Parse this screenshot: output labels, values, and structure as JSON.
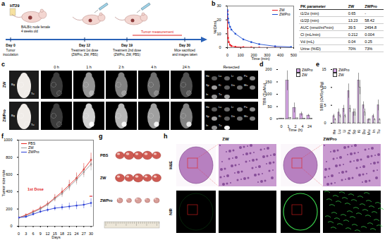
{
  "panel_labels": [
    "a",
    "b",
    "c",
    "d",
    "e",
    "f",
    "g",
    "h"
  ],
  "schematic": {
    "cell_line": "HT29",
    "mouse": "BALB/c nude female",
    "age": "4 weeks old",
    "measurement": "Tumor measurement",
    "timeline": [
      {
        "day": "Day 0",
        "event": "Tumor\ninoculation"
      },
      {
        "day": "Day 12",
        "event": "Treatment 1st dose\n(ZWPro, ZW, PBS)"
      },
      {
        "day": "Day 19",
        "event": "Treatment 2nd dose\n(ZWPro, ZW, PBS)"
      },
      {
        "day": "Day 30",
        "event": "Mice sacrificed\nand images taken"
      }
    ]
  },
  "pk_table": {
    "header": [
      "PK parameter",
      "ZW",
      "ZWPro"
    ],
    "rows": [
      [
        "t1/2α (min)",
        "0.65",
        "-"
      ],
      [
        "t1/2β (min)",
        "13.23",
        "58.42"
      ],
      [
        "AUC (nmol/ml*min)",
        "39.5",
        "2494.8"
      ],
      [
        "Cl (mL/min)",
        "0.212",
        "0.004"
      ],
      [
        "Vd (mL)",
        "0.04",
        "0.25"
      ],
      [
        "Urine (%ID)",
        "70%",
        "73%"
      ]
    ]
  },
  "imaging": {
    "rows": [
      "ZW",
      "ZWPro"
    ],
    "timepoints": [
      "0 h",
      "1 h",
      "2 h",
      "4 h",
      "24 h"
    ],
    "resected": "Resected",
    "marks": [
      "Bg",
      "Tu"
    ],
    "organ_labels": [
      "He",
      "Lu",
      "Li",
      "Pa",
      "Sp",
      "Ki",
      "Du",
      "Mu",
      "In",
      "Tu"
    ]
  },
  "tumor_photos": {
    "groups": [
      "PBS",
      "ZW",
      "ZWPro"
    ]
  },
  "histology": {
    "columns": [
      "ZW",
      "ZWPro"
    ],
    "rows": [
      "H&E",
      "NIR"
    ]
  },
  "chart_data": [
    {
      "panel": "b",
      "type": "line",
      "x_label": "Time (min)",
      "y_label": "%ID/mL",
      "xlim": [
        0,
        500
      ],
      "xticks": [
        0,
        100,
        200,
        300,
        400,
        500
      ],
      "ylim": [
        0,
        30
      ],
      "yticks": [
        0,
        10,
        20,
        30
      ],
      "marker": "circle",
      "legend": "top-right",
      "x": [
        0,
        2,
        5,
        10,
        20,
        30,
        60,
        120,
        180,
        240,
        360,
        480
      ],
      "series": [
        {
          "name": "ZW",
          "color": "#e8141c",
          "values": [
            26,
            14,
            7,
            4,
            2,
            1.2,
            0.6,
            0.3,
            0.2,
            0.1,
            0.1,
            0.1
          ]
        },
        {
          "name": "ZWPro",
          "color": "#1f4fd1",
          "values": [
            27,
            24,
            21,
            18,
            15,
            13,
            10,
            6,
            4,
            2.5,
            1,
            0.5
          ]
        }
      ]
    },
    {
      "panel": "d",
      "type": "bar",
      "x_label": "Time (h)",
      "y_label": "TBR (Tu/Mu)",
      "categories": [
        "0",
        "1",
        "2",
        "4",
        "24"
      ],
      "ylim": [
        0,
        200
      ],
      "yticks": [
        0,
        50,
        100,
        150,
        200
      ],
      "legend": "top-right",
      "series": [
        {
          "name": "ZWPro",
          "color": "#d4a5e3",
          "values": [
            1,
            155,
            45,
            20,
            14
          ],
          "errors": [
            0.5,
            40,
            20,
            8,
            5
          ]
        },
        {
          "name": "ZW",
          "color": "#ffffff",
          "values": [
            1,
            4,
            3,
            2,
            2
          ],
          "errors": [
            0.5,
            2,
            1,
            1,
            1
          ]
        }
      ]
    },
    {
      "panel": "e",
      "type": "bar",
      "y_label": "SBR (Or/Sys Bg)",
      "categories": [
        "He",
        "Lu",
        "Li",
        "Pa",
        "Sp",
        "Ki",
        "Du",
        "Mu",
        "In",
        "Tu"
      ],
      "ylim": [
        0,
        15
      ],
      "yticks": [
        0,
        5,
        10,
        15
      ],
      "legend": "top-left",
      "series": [
        {
          "name": "ZWPro",
          "color": "#d4a5e3",
          "values": [
            2,
            3,
            4,
            9,
            3,
            12,
            5,
            1,
            2,
            5
          ],
          "errors": [
            0.5,
            1,
            1,
            2,
            1,
            2,
            1,
            0.3,
            0.5,
            1.5
          ]
        },
        {
          "name": "ZW",
          "color": "#ffffff",
          "values": [
            1,
            2,
            2,
            4,
            3,
            10,
            3,
            1,
            1,
            1
          ],
          "errors": [
            0.3,
            0.5,
            0.5,
            1,
            1,
            2,
            1,
            0.3,
            0.3,
            0.3
          ]
        }
      ]
    },
    {
      "panel": "f",
      "type": "line",
      "x_label": "Days",
      "y_label": "Tumor size rate",
      "xlim": [
        0,
        31
      ],
      "xticks": [
        0,
        3,
        6,
        9,
        12,
        15,
        18,
        21,
        24,
        27,
        30
      ],
      "ylim": [
        0,
        1000
      ],
      "yticks": [
        0,
        200,
        400,
        600,
        800,
        1000
      ],
      "marker": "circle",
      "legend": "top-left",
      "x": [
        0,
        3,
        6,
        9,
        12,
        15,
        18,
        21,
        24,
        27,
        30
      ],
      "series": [
        {
          "name": "PBS",
          "color": "#e8251f",
          "values": [
            100,
            130,
            170,
            210,
            260,
            330,
            400,
            480,
            560,
            660,
            770
          ],
          "errors": [
            10,
            15,
            20,
            25,
            30,
            40,
            45,
            55,
            60,
            70,
            80
          ]
        },
        {
          "name": "ZW",
          "color": "#9a9a9a",
          "values": [
            100,
            120,
            160,
            200,
            250,
            320,
            380,
            460,
            540,
            630,
            720
          ],
          "errors": [
            10,
            15,
            20,
            25,
            30,
            35,
            45,
            50,
            60,
            65,
            75
          ]
        },
        {
          "name": "ZWPro",
          "color": "#2b3fd6",
          "values": [
            100,
            110,
            140,
            170,
            190,
            210,
            220,
            230,
            240,
            250,
            270
          ],
          "errors": [
            10,
            12,
            15,
            20,
            25,
            30,
            35,
            40,
            45,
            45,
            50
          ]
        }
      ],
      "annotations": [
        {
          "text": "1st Dose",
          "x": 7,
          "y": 430
        },
        {
          "text": "**",
          "x": 30,
          "y": 340
        }
      ]
    }
  ]
}
